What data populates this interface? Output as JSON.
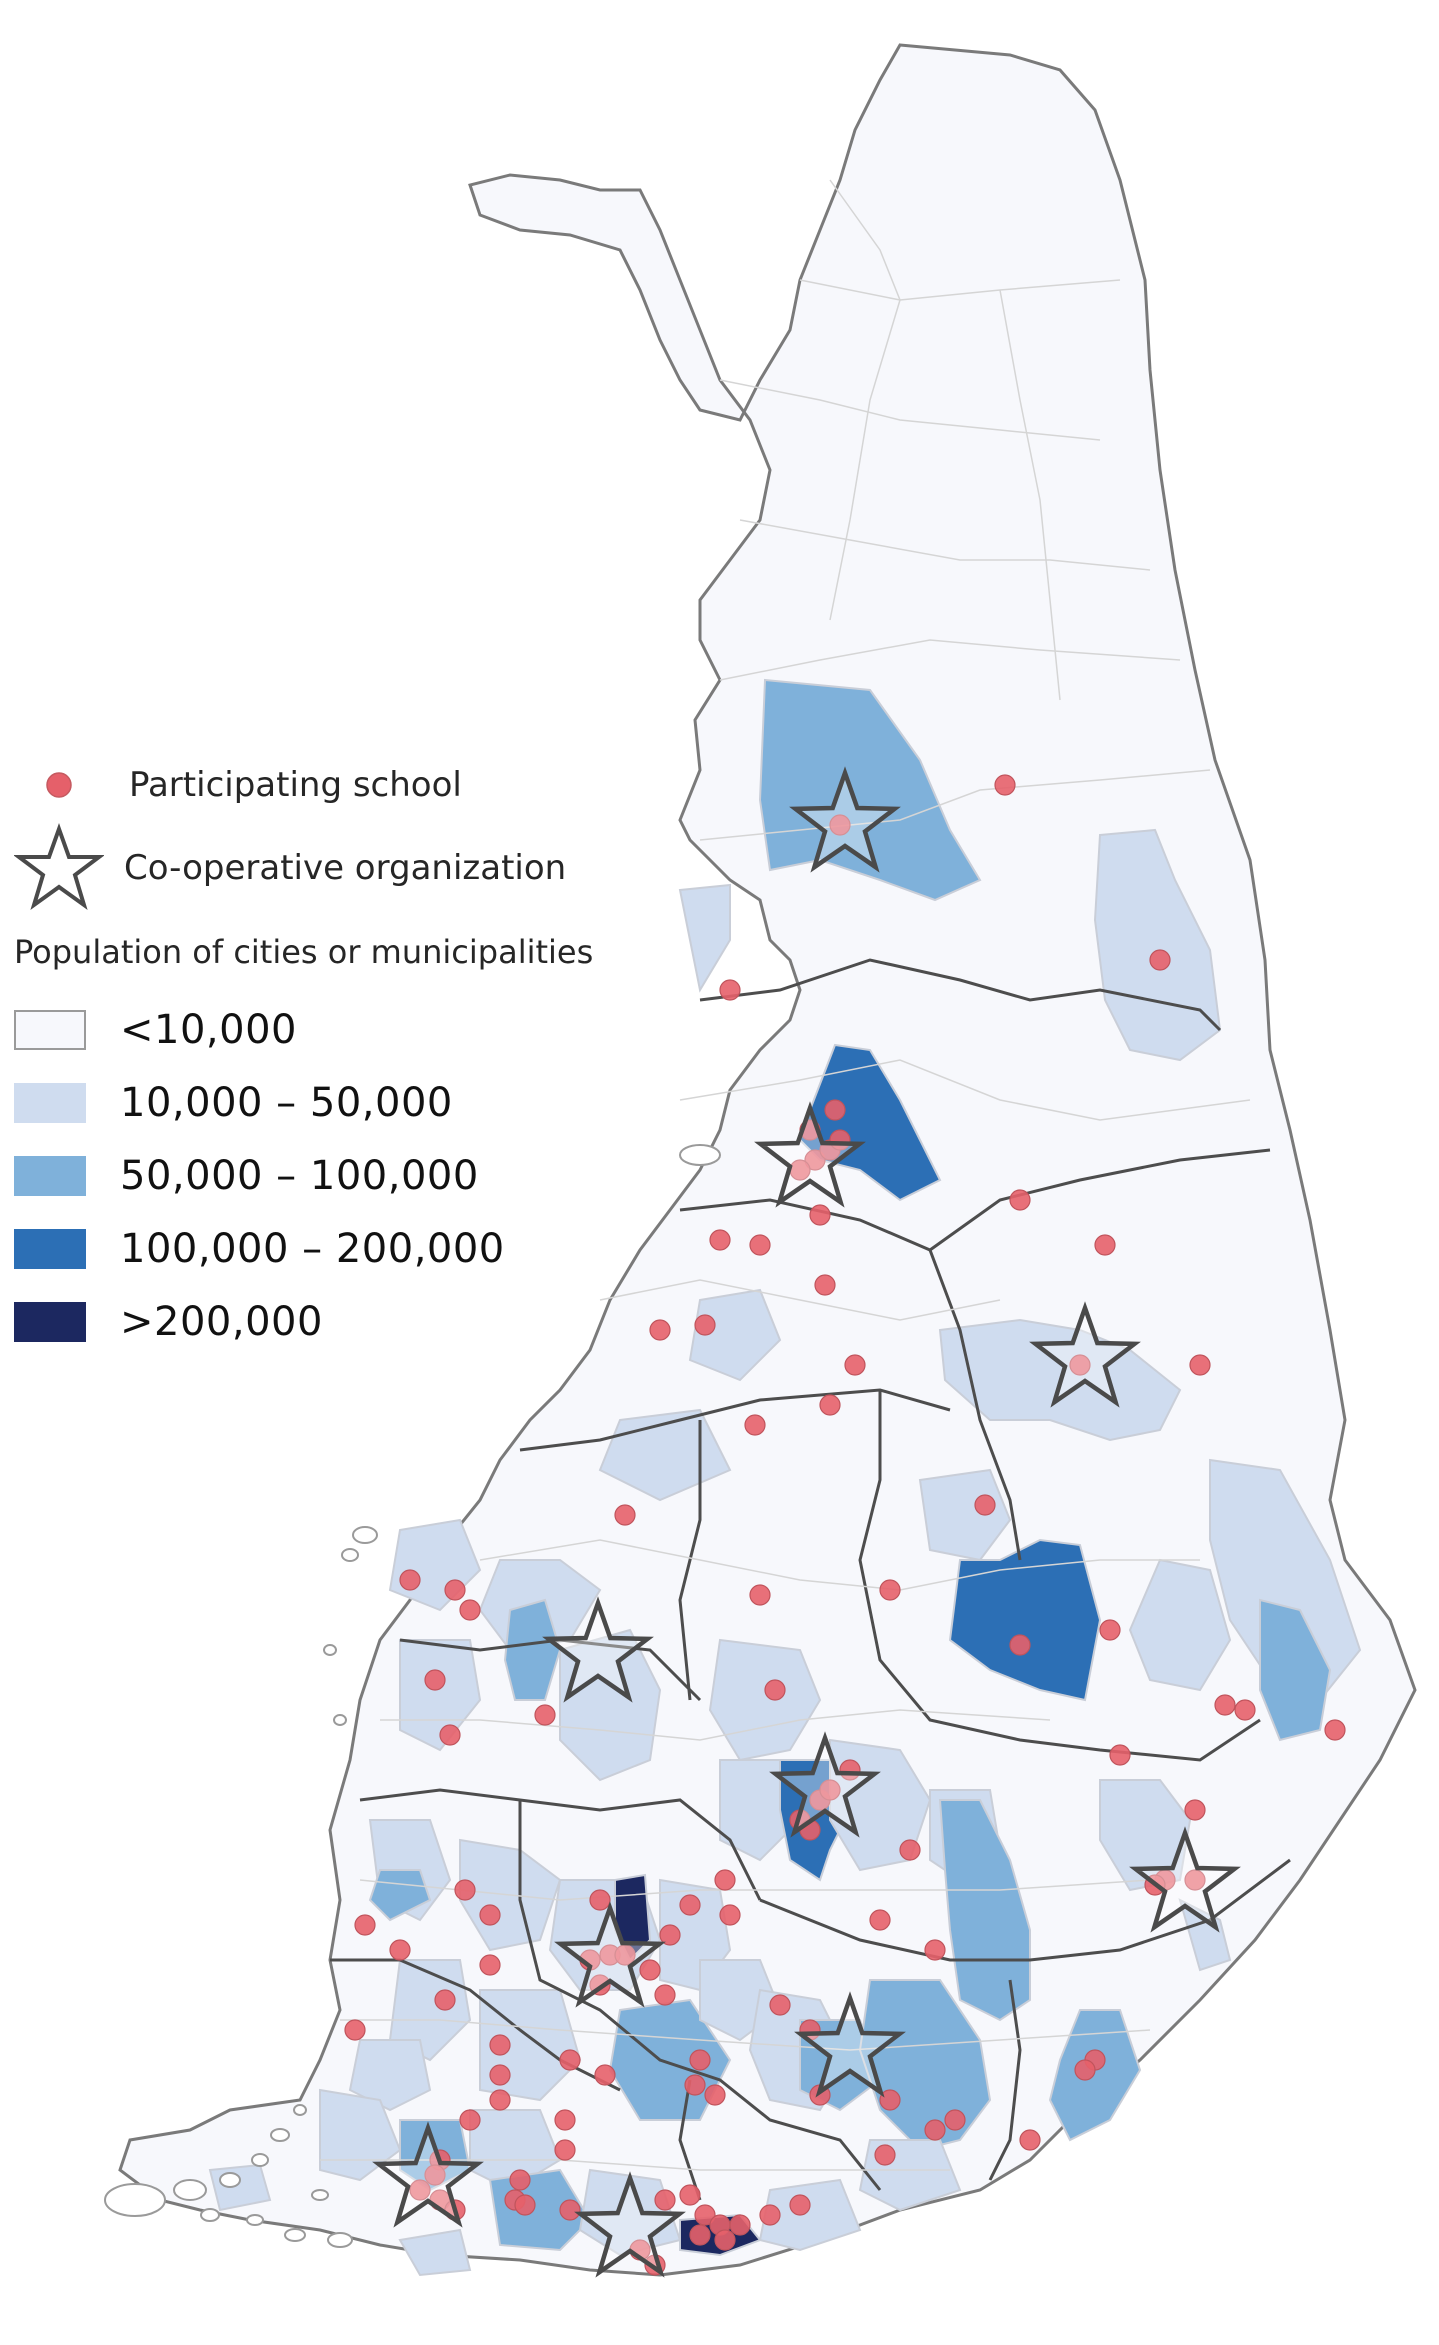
{
  "legend": {
    "school_label": "Participating school",
    "org_label": "Co-operative organization",
    "population_title": "Population of cities or municipalities",
    "classes": [
      {
        "label": "<10,000",
        "color": "#f7f8fc"
      },
      {
        "label": "10,000 – 50,000",
        "color": "#cfdcef"
      },
      {
        "label": "50,000 – 100,000",
        "color": "#7fb1da"
      },
      {
        "label": "100,000 – 200,000",
        "color": "#2c6fb5"
      },
      {
        "label": ">200,000",
        "color": "#1c2860"
      }
    ]
  },
  "colors": {
    "school_marker": "#e5606a",
    "star_outline": "#4a4a4a",
    "land": "#f7f8fc",
    "border_region": "#4d4d4d",
    "border_municipality": "#c8c8c8"
  }
}
